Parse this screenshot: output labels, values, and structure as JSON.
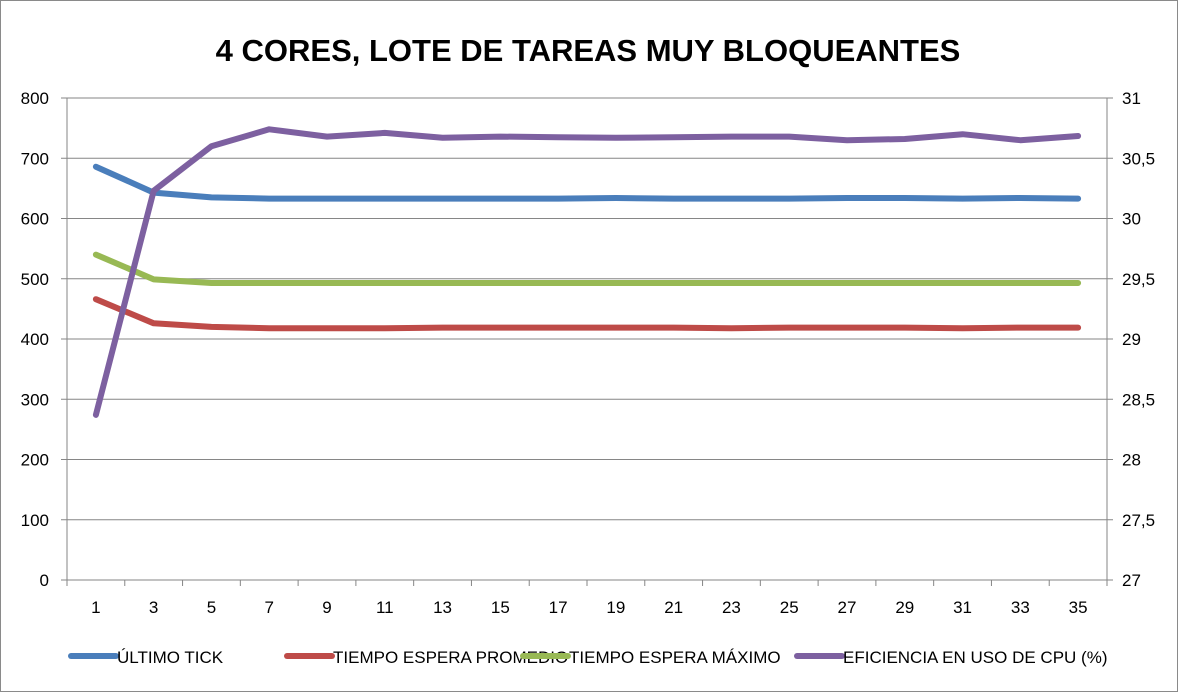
{
  "chart_data": {
    "type": "line",
    "title": "4 CORES, LOTE DE TAREAS MUY BLOQUEANTES",
    "x": [
      1,
      3,
      5,
      7,
      9,
      11,
      13,
      15,
      17,
      19,
      21,
      23,
      25,
      27,
      29,
      31,
      33,
      35
    ],
    "x_tick_labels": [
      "1",
      "3",
      "5",
      "7",
      "9",
      "11",
      "13",
      "15",
      "17",
      "19",
      "21",
      "23",
      "25",
      "27",
      "29",
      "31",
      "33",
      "35"
    ],
    "y_left": {
      "min": 0,
      "max": 800,
      "ticks": [
        "0",
        "100",
        "200",
        "300",
        "400",
        "500",
        "600",
        "700",
        "800"
      ]
    },
    "y_right": {
      "min": 27,
      "max": 31,
      "ticks": [
        "27",
        "27,5",
        "28",
        "28,5",
        "29",
        "29,5",
        "30",
        "30,5",
        "31"
      ]
    },
    "grid": "horizontal",
    "legend_position": "bottom",
    "series": [
      {
        "name": "ÚLTIMO TICK",
        "axis": "left",
        "color": "#4a7ebb",
        "values": [
          686,
          643,
          635,
          633,
          633,
          633,
          633,
          633,
          633,
          634,
          633,
          633,
          633,
          634,
          634,
          633,
          634,
          633
        ]
      },
      {
        "name": "TIEMPO ESPERA PROMEDIO",
        "axis": "left",
        "color": "#be4b48",
        "values": [
          466,
          426,
          420,
          418,
          418,
          418,
          419,
          419,
          419,
          419,
          419,
          418,
          419,
          419,
          419,
          418,
          419,
          419
        ]
      },
      {
        "name": "TIEMPO ESPERA MÁXIMO",
        "axis": "left",
        "color": "#98b954",
        "values": [
          540,
          499,
          493,
          493,
          493,
          493,
          493,
          493,
          493,
          493,
          493,
          493,
          493,
          493,
          493,
          493,
          493,
          493
        ]
      },
      {
        "name": "EFICIENCIA EN USO DE CPU (%)",
        "axis": "right",
        "color": "#7d60a0",
        "values": [
          28.37,
          30.23,
          30.6,
          30.74,
          30.68,
          30.71,
          30.67,
          30.68,
          30.675,
          30.67,
          30.675,
          30.68,
          30.68,
          30.65,
          30.66,
          30.7,
          30.65,
          30.685
        ]
      }
    ]
  }
}
